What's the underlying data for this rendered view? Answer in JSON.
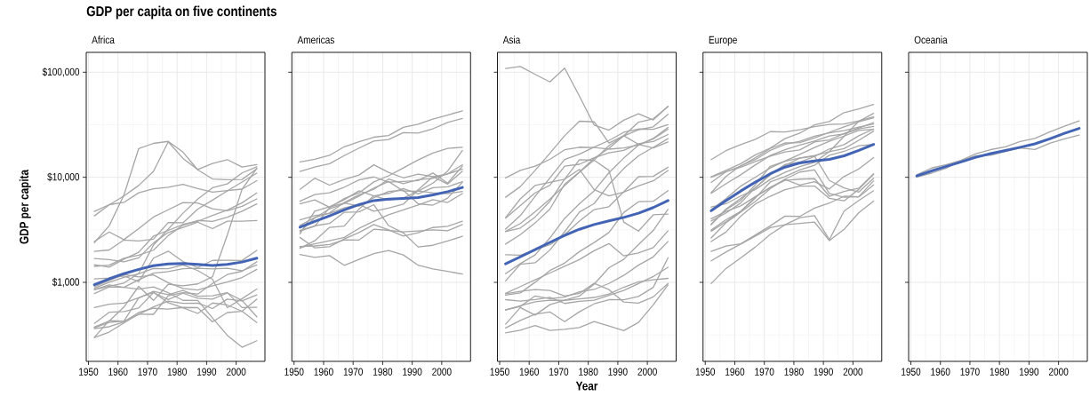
{
  "chart_data": [
    {
      "type": "line",
      "title": "GDP per capita on five continents",
      "subtitle": "Africa",
      "ylabel": "GDP per capita",
      "x": [
        1952,
        1957,
        1962,
        1967,
        1972,
        1977,
        1982,
        1987,
        1992,
        1997,
        2002,
        2007
      ],
      "xlim": [
        1949.25,
        2009.75
      ],
      "ylim": [
        177,
        154500
      ],
      "log": "y",
      "grid": true,
      "xticks": [
        1950,
        1960,
        1970,
        1980,
        1990,
        2000
      ],
      "yticks": [
        {
          "value": 1000,
          "label": "$1,000"
        },
        {
          "value": 10000,
          "label": "$10,000"
        },
        {
          "value": 100000,
          "label": "$100,000"
        }
      ],
      "series": [
        {
          "color": "#a6a6a6",
          "values": [
            2388,
            3448,
            6757,
            18773,
            21011,
            21951,
            17364,
            11770,
            9640,
            9467,
            9534,
            12057
          ]
        },
        {
          "color": "#a6a6a6",
          "values": [
            4293,
            5468,
            6631,
            8359,
            11401,
            21746,
            15113,
            11864,
            13522,
            14723,
            12522,
            13206
          ]
        },
        {
          "color": "#a6a6a6",
          "values": [
            4725,
            5487,
            5769,
            7114,
            7765,
            8029,
            8568,
            7826,
            7225,
            7479,
            7711,
            9270
          ]
        },
        {
          "color": "#a6a6a6",
          "values": [
            375,
            427,
            582,
            916,
            673,
            958,
            927,
            966,
            1132,
            2815,
            7703,
            12154
          ]
        },
        {
          "color": "#a6a6a6",
          "values": [
            851,
            918,
            984,
            1215,
            2264,
            3215,
            4551,
            6205,
            7954,
            8647,
            11004,
            12570
          ]
        },
        {
          "color": "#a6a6a6",
          "values": [
            1968,
            2034,
            2529,
            2475,
            2575,
            3710,
            3689,
            4979,
            6058,
            7426,
            9021,
            10957
          ]
        },
        {
          "color": "#a6a6a6",
          "values": [
            2449,
            3014,
            2551,
            3247,
            4183,
            4910,
            5745,
            5681,
            5023,
            4797,
            5288,
            6223
          ]
        },
        {
          "color": "#a6a6a6",
          "values": [
            1419,
            1459,
            1693,
            1815,
            2024,
            2785,
            3504,
            3885,
            3795,
            4173,
            4755,
            5581
          ]
        },
        {
          "color": "#a6a6a6",
          "values": [
            781,
            906,
            896,
            862,
            904,
            796,
            674,
            672,
            458,
            313,
            241,
            278
          ]
        },
        {
          "color": "#a6a6a6",
          "values": [
            576,
            620,
            634,
            713,
            803,
            640,
            573,
            506,
            636,
            609,
            531,
            415
          ]
        },
        {
          "color": "#a6a6a6",
          "values": [
            1077,
            1101,
            1151,
            1015,
            1698,
            1982,
            1577,
            1385,
            1619,
            1625,
            1615,
            2014
          ]
        },
        {
          "color": "#a6a6a6",
          "values": [
            362,
            378,
            420,
            516,
            566,
            556,
            577,
            574,
            421,
            516,
            530,
            691
          ]
        },
        {
          "color": "#a6a6a6",
          "values": [
            369,
            416,
            427,
            495,
            584,
            664,
            632,
            635,
            563,
            692,
            665,
            759
          ]
        },
        {
          "color": "#a6a6a6",
          "values": [
            299,
            336,
            411,
            498,
            496,
            745,
            797,
            774,
            977,
            1186,
            1275,
            1569
          ]
        },
        {
          "color": "#a6a6a6",
          "values": [
            407,
            519,
            527,
            570,
            799,
            686,
            788,
            706,
            693,
            792,
            672,
            470
          ]
        },
        {
          "color": "#a6a6a6",
          "values": [
            911,
            1044,
            1190,
            1126,
            1178,
            993,
            876,
            847,
            925,
            1005,
            1112,
            1328
          ]
        },
        {
          "color": "#a6a6a6",
          "values": [
            854,
            944,
            897,
            1057,
            1222,
            1268,
            1348,
            1361,
            1341,
            1360,
            1288,
            1463
          ]
        },
        {
          "color": "#a6a6a6",
          "values": [
            1688,
            1643,
            1566,
            1712,
            2370,
            2982,
            3326,
            3738,
            3246,
            3818,
            3826,
            3881
          ]
        },
        {
          "color": "#a6a6a6",
          "values": [
            1469,
            1395,
            1661,
            1933,
            2753,
            3120,
            3560,
            3811,
            4333,
            4877,
            5723,
            7093
          ]
        },
        {
          "color": "#a6a6a6",
          "values": [
            880,
            1004,
            1116,
            1206,
            1353,
            1348,
            1465,
            1294,
            1069,
            574,
            699,
            863
          ]
        },
        {
          "color": "#a6a6a6",
          "values": [
            300,
            432,
            427,
            710,
            820,
            765,
            838,
            737,
            746,
            797,
            576,
            579
          ]
        },
        {
          "color": "#4364b4",
          "x": [
            1952,
            1957,
            1962,
            1967,
            1972,
            1977,
            1982,
            1987,
            1992,
            1997,
            2002,
            2007
          ],
          "values": [
            950,
            1080,
            1210,
            1330,
            1440,
            1500,
            1510,
            1480,
            1450,
            1480,
            1560,
            1700
          ]
        }
      ]
    },
    {
      "type": "line",
      "title": "Americas",
      "x": [
        1952,
        1957,
        1962,
        1967,
        1972,
        1977,
        1982,
        1987,
        1992,
        1997,
        2002,
        2007
      ],
      "xlim": [
        1949.25,
        2009.75
      ],
      "ylim": [
        177,
        154500
      ],
      "log": "y",
      "grid": true,
      "tick_labels": "x",
      "xticks": [
        1950,
        1960,
        1970,
        1980,
        1990,
        2000
      ],
      "yticks": [
        1000,
        10000,
        100000
      ],
      "series": [
        {
          "color": "#a6a6a6",
          "values": [
            13990,
            14847,
            16173,
            19530,
            21806,
            24072,
            25009,
            29884,
            32004,
            35767,
            39097,
            42952
          ]
        },
        {
          "color": "#a6a6a6",
          "values": [
            11367,
            12490,
            13462,
            16077,
            18971,
            22091,
            22899,
            26627,
            26343,
            28955,
            33329,
            36319
          ]
        },
        {
          "color": "#a6a6a6",
          "values": [
            5911,
            6857,
            7133,
            8053,
            9443,
            10079,
            8998,
            9140,
            9308,
            10968,
            8798,
            12779
          ]
        },
        {
          "color": "#a6a6a6",
          "values": [
            7690,
            9803,
            8423,
            9541,
            10506,
            13144,
            11153,
            9884,
            10733,
            10165,
            8606,
            11416
          ]
        },
        {
          "color": "#a6a6a6",
          "values": [
            2109,
            2487,
            3337,
            3430,
            4986,
            6660,
            7031,
            7807,
            6950,
            7958,
            8131,
            9066
          ]
        },
        {
          "color": "#a6a6a6",
          "values": [
            3478,
            4132,
            4582,
            5755,
            6809,
            7675,
            9611,
            8688,
            9472,
            9767,
            10742,
            11978
          ]
        },
        {
          "color": "#a6a6a6",
          "values": [
            3940,
            4316,
            4519,
            5107,
            5494,
            4757,
            5096,
            5547,
            7596,
            10118,
            10779,
            13172
          ]
        },
        {
          "color": "#a6a6a6",
          "values": [
            1840,
            1726,
            1796,
            1452,
            1654,
            1874,
            2011,
            1823,
            1456,
            1342,
            1270,
            1202
          ]
        },
        {
          "color": "#a6a6a6",
          "values": [
            2677,
            2128,
            2181,
            2587,
            2981,
            3548,
            3157,
            2754,
            2962,
            3326,
            3413,
            3822
          ]
        },
        {
          "color": "#a6a6a6",
          "values": [
            2195,
            2220,
            2292,
            2538,
            2529,
            3203,
            3121,
            3023,
            3082,
            3160,
            3099,
            3548
          ]
        },
        {
          "color": "#a6a6a6",
          "values": [
            3112,
            3457,
            3635,
            4643,
            4689,
            5487,
            3471,
            2955,
            2171,
            2253,
            2475,
            2749
          ]
        },
        {
          "color": "#a6a6a6",
          "values": [
            3023,
            4100,
            4997,
            5622,
            6619,
            7899,
            9119,
            7388,
            7371,
            8793,
            11461,
            18009
          ]
        },
        {
          "color": "#a6a6a6",
          "values": [
            2899,
            4757,
            5246,
            6125,
            7434,
            6650,
            6068,
            6351,
            7404,
            7121,
            6995,
            7321
          ]
        },
        {
          "color": "#a6a6a6",
          "values": [
            3082,
            3421,
            5131,
            6281,
            7106,
            9037,
            10331,
            12281,
            14642,
            16999,
            18856,
            19329
          ]
        },
        {
          "color": "#a6a6a6",
          "values": [
            5587,
            6092,
            5181,
            5690,
            5305,
            6380,
            7317,
            7533,
            5593,
            5432,
            6341,
            8948
          ]
        },
        {
          "color": "#a6a6a6",
          "values": [
            2144,
            2324,
            2492,
            2679,
            3265,
            3816,
            4398,
            4903,
            5445,
            6117,
            5755,
            7007
          ]
        },
        {
          "color": "#4364b4",
          "x": [
            1952,
            1957,
            1962,
            1967,
            1972,
            1977,
            1982,
            1987,
            1992,
            1997,
            2002,
            2007
          ],
          "values": [
            3350,
            3800,
            4300,
            4900,
            5500,
            6000,
            6200,
            6300,
            6400,
            6800,
            7300,
            8000
          ]
        }
      ]
    },
    {
      "type": "line",
      "title": "Asia",
      "xlabel": "Year",
      "x": [
        1952,
        1957,
        1962,
        1967,
        1972,
        1977,
        1982,
        1987,
        1992,
        1997,
        2002,
        2007
      ],
      "xlim": [
        1949.25,
        2009.75
      ],
      "ylim": [
        177,
        154500
      ],
      "log": "y",
      "grid": true,
      "tick_labels": "x",
      "xticks": [
        1950,
        1960,
        1970,
        1980,
        1990,
        2000
      ],
      "yticks": [
        1000,
        10000,
        100000
      ],
      "series": [
        {
          "color": "#a6a6a6",
          "values": [
            108382,
            113523,
            95458,
            80895,
            109348,
            59265,
            31354,
            28118,
            34933,
            40301,
            35111,
            47307
          ]
        },
        {
          "color": "#a6a6a6",
          "values": [
            3217,
            4318,
            6577,
            9848,
            14779,
            16610,
            19384,
            22376,
            26825,
            28817,
            28605,
            31656
          ]
        },
        {
          "color": "#a6a6a6",
          "values": [
            2315,
            2843,
            3675,
            4977,
            8597,
            11210,
            15169,
            18862,
            24769,
            33519,
            36023,
            47143
          ]
        },
        {
          "color": "#a6a6a6",
          "values": [
            3054,
            3629,
            4693,
            6198,
            8316,
            11186,
            14561,
            20038,
            24758,
            28378,
            30209,
            39725
          ]
        },
        {
          "color": "#a6a6a6",
          "values": [
            1031,
            1488,
            1536,
            2029,
            3031,
            4657,
            5623,
            8533,
            12104,
            15994,
            19234,
            23348
          ]
        },
        {
          "color": "#a6a6a6",
          "values": [
            6460,
            8157,
            11626,
            16903,
            24837,
            34168,
            33693,
            21199,
            24841,
            20586,
            19014,
            21655
          ]
        },
        {
          "color": "#a6a6a6",
          "values": [
            9867,
            11636,
            12753,
            14805,
            18269,
            19340,
            19211,
            18525,
            19036,
            20292,
            23404,
            29796
          ]
        },
        {
          "color": "#a6a6a6",
          "values": [
            4087,
            5386,
            7106,
            8394,
            12787,
            13306,
            15368,
            17123,
            18051,
            20896,
            21905,
            25523
          ]
        },
        {
          "color": "#a6a6a6",
          "values": [
            1207,
            1508,
            1823,
            2644,
            4063,
            5597,
            7427,
            11054,
            15216,
            20207,
            23235,
            28718
          ]
        },
        {
          "color": "#a6a6a6",
          "values": [
            1831,
            1811,
            2037,
            2278,
            2850,
            3828,
            4921,
            5249,
            7278,
            10132,
            10207,
            12452
          ]
        },
        {
          "color": "#a6a6a6",
          "values": [
            3035,
            3291,
            4187,
            5906,
            9614,
            11889,
            7608,
            6643,
            7236,
            8263,
            9241,
            11606
          ]
        },
        {
          "color": "#a6a6a6",
          "values": [
            4130,
            6229,
            8342,
            8931,
            9576,
            14688,
            14517,
            11644,
            3746,
            3076,
            4391,
            4471
          ]
        },
        {
          "color": "#a6a6a6",
          "values": [
            400,
            576,
            488,
            613,
            677,
            741,
            962,
            1379,
            1655,
            2289,
            3119,
            4959
          ]
        },
        {
          "color": "#a6a6a6",
          "values": [
            547,
            590,
            742,
            700,
            724,
            813,
            856,
            976,
            1164,
            1458,
            1747,
            2452
          ]
        },
        {
          "color": "#a6a6a6",
          "values": [
            331,
            350,
            388,
            349,
            357,
            371,
            424,
            385,
            347,
            415,
            611,
            944
          ]
        },
        {
          "color": "#a6a6a6",
          "values": [
            368,
            434,
            497,
            523,
            422,
            525,
            624,
            684,
            682,
            734,
            896,
            1714
          ]
        },
        {
          "color": "#a6a6a6",
          "values": [
            684,
            662,
            686,
            721,
            630,
            660,
            677,
            752,
            838,
            973,
            1136,
            1391
          ]
        },
        {
          "color": "#a6a6a6",
          "values": [
            757,
            794,
            1002,
            1296,
            1524,
            1962,
            2393,
            2982,
            4617,
            5852,
            5914,
            7458
          ]
        },
        {
          "color": "#a6a6a6",
          "values": [
            779,
            821,
            853,
            836,
            740,
            786,
            978,
            852,
            649,
            635,
            727,
            975
          ]
        },
        {
          "color": "#a6a6a6",
          "values": [
            546,
            598,
            652,
            676,
            674,
            695,
            718,
            775,
            898,
            1011,
            1057,
            1091
          ]
        },
        {
          "color": "#a6a6a6",
          "values": [
            787,
            912,
            1056,
            1226,
            1421,
            1648,
            2000,
            2338,
            1785,
            1902,
            2140,
            3096
          ]
        },
        {
          "color": "#4364b4",
          "x": [
            1952,
            1957,
            1962,
            1967,
            1972,
            1977,
            1982,
            1987,
            1992,
            1997,
            2002,
            2007
          ],
          "values": [
            1500,
            1750,
            2050,
            2400,
            2800,
            3200,
            3550,
            3850,
            4150,
            4550,
            5150,
            6000
          ]
        }
      ]
    },
    {
      "type": "line",
      "title": "Europe",
      "x": [
        1952,
        1957,
        1962,
        1967,
        1972,
        1977,
        1982,
        1987,
        1992,
        1997,
        2002,
        2007
      ],
      "xlim": [
        1949.25,
        2009.75
      ],
      "ylim": [
        177,
        154500
      ],
      "log": "y",
      "grid": true,
      "tick_labels": "x",
      "xticks": [
        1950,
        1960,
        1970,
        1980,
        1990,
        2000
      ],
      "yticks": [
        1000,
        10000,
        100000
      ],
      "series": [
        {
          "color": "#a6a6a6",
          "values": [
            10095,
            11654,
            13450,
            16362,
            18965,
            23311,
            26299,
            31541,
            33966,
            41283,
            44684,
            49357
          ]
        },
        {
          "color": "#a6a6a6",
          "values": [
            14734,
            17909,
            20431,
            22966,
            27195,
            26982,
            28398,
            30282,
            31872,
            32136,
            34481,
            37506
          ]
        },
        {
          "color": "#a6a6a6",
          "values": [
            8942,
            11277,
            12791,
            15363,
            18795,
            21210,
            21400,
            23651,
            26791,
            30246,
            33725,
            36798
          ]
        },
        {
          "color": "#a6a6a6",
          "values": [
            9980,
            11283,
            12477,
            14143,
            15895,
            17429,
            18232,
            21665,
            22705,
            26075,
            29479,
            33203
          ]
        },
        {
          "color": "#a6a6a6",
          "values": [
            7030,
            8663,
            10560,
            13150,
            16107,
            18293,
            20294,
            22066,
            24704,
            25890,
            28926,
            30470
          ]
        },
        {
          "color": "#a6a6a6",
          "values": [
            7144,
            10188,
            12902,
            14746,
            18016,
            20513,
            22032,
            24639,
            26505,
            27789,
            30036,
            32170
          ]
        },
        {
          "color": "#a6a6a6",
          "values": [
            4931,
            6249,
            8244,
            10022,
            12269,
            14256,
            16537,
            19208,
            22013,
            24675,
            27968,
            28570
          ]
        },
        {
          "color": "#a6a6a6",
          "values": [
            3834,
            4565,
            5694,
            7994,
            10639,
            13237,
            13926,
            15765,
            18603,
            20445,
            24835,
            28821
          ]
        },
        {
          "color": "#a6a6a6",
          "values": [
            3068,
            3775,
            4728,
            6361,
            9022,
            10172,
            11754,
            13039,
            16207,
            17641,
            19971,
            20510
          ]
        },
        {
          "color": "#a6a6a6",
          "values": [
            3531,
            4916,
            6017,
            8513,
            12725,
            14196,
            15268,
            16121,
            17541,
            18748,
            22514,
            27538
          ]
        },
        {
          "color": "#a6a6a6",
          "values": [
            4029,
            4734,
            5339,
            6557,
            8007,
            9508,
            8451,
            9082,
            7739,
            10160,
            12002,
            15390
          ]
        },
        {
          "color": "#a6a6a6",
          "values": [
            3144,
            3943,
            4734,
            6470,
            8011,
            9356,
            9605,
            9697,
            6599,
            7346,
            7886,
            10808
          ]
        },
        {
          "color": "#a6a6a6",
          "values": [
            2444,
            3009,
            4254,
            5578,
            6597,
            7612,
            8225,
            8240,
            6303,
            5970,
            7697,
            10681
          ]
        },
        {
          "color": "#a6a6a6",
          "values": [
            1969,
            2219,
            2323,
            2826,
            3450,
            4270,
            4241,
            5089,
            5679,
            6601,
            6508,
            8458
          ]
        },
        {
          "color": "#a6a6a6",
          "values": [
            1601,
            1942,
            2313,
            2760,
            3313,
            3534,
            3631,
            3739,
            2497,
            3193,
            4604,
            5937
          ]
        },
        {
          "color": "#a6a6a6",
          "values": [
            974,
            1354,
            1710,
            2172,
            2860,
            3528,
            4127,
            4314,
            2547,
            4766,
            6019,
            7446
          ]
        },
        {
          "color": "#a6a6a6",
          "values": [
            2648,
            3682,
            4650,
            5908,
            7779,
            9596,
            11223,
            11733,
            7003,
            6465,
            6557,
            9254
          ]
        },
        {
          "color": "#a6a6a6",
          "values": [
            3581,
            4981,
            6290,
            7991,
            10523,
            12981,
            15181,
            15871,
            9325,
            7914,
            7236,
            9787
          ]
        },
        {
          "color": "#a6a6a6",
          "values": [
            5210,
            5599,
            6632,
            7656,
            9531,
            11151,
            12618,
            13873,
            17559,
            24522,
            34077,
            40676
          ]
        },
        {
          "color": "#4364b4",
          "x": [
            1952,
            1957,
            1962,
            1967,
            1972,
            1977,
            1982,
            1987,
            1992,
            1997,
            2002,
            2007
          ],
          "values": [
            4800,
            6000,
            7400,
            9000,
            10800,
            12500,
            13700,
            14300,
            14800,
            16000,
            18000,
            20600
          ]
        }
      ]
    },
    {
      "type": "line",
      "title": "Oceania",
      "x": [
        1952,
        1957,
        1962,
        1967,
        1972,
        1977,
        1982,
        1987,
        1992,
        1997,
        2002,
        2007
      ],
      "xlim": [
        1949.25,
        2009.75
      ],
      "ylim": [
        177,
        154500
      ],
      "log": "y",
      "grid": true,
      "tick_labels": "x",
      "xticks": [
        1950,
        1960,
        1970,
        1980,
        1990,
        2000
      ],
      "yticks": [
        1000,
        10000,
        100000
      ],
      "series": [
        {
          "color": "#a6a6a6",
          "values": [
            10040,
            10950,
            12217,
            14526,
            16789,
            18334,
            19477,
            21889,
            23425,
            26998,
            30688,
            34435
          ]
        },
        {
          "color": "#a6a6a6",
          "values": [
            10557,
            12247,
            13176,
            14464,
            16046,
            16234,
            17632,
            19007,
            18363,
            21050,
            23190,
            25185
          ]
        },
        {
          "color": "#4364b4",
          "x": [
            1952,
            1957,
            1962,
            1967,
            1972,
            1977,
            1982,
            1987,
            1992,
            1997,
            2002,
            2007
          ],
          "values": [
            10300,
            11500,
            12700,
            14000,
            15500,
            16800,
            18000,
            19300,
            20800,
            23200,
            26200,
            29200
          ]
        }
      ]
    }
  ]
}
